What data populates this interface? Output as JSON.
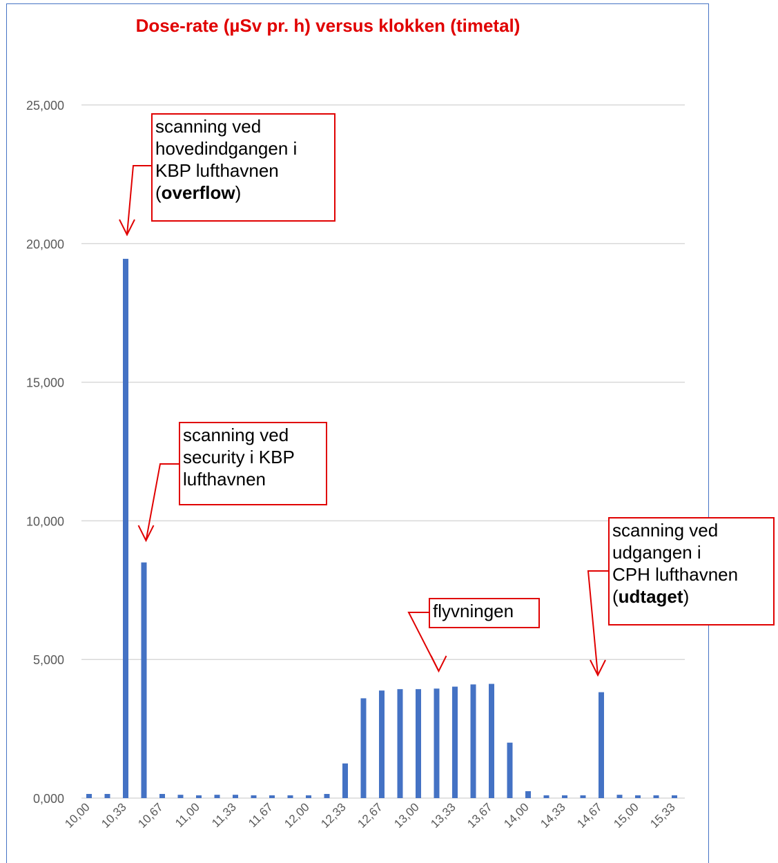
{
  "colors": {
    "bar": "#4472c4",
    "title": "#e00000",
    "annotation": "#e00000",
    "grid": "#d9d9d9",
    "axis_text": "#595959",
    "frame": "#4472c4"
  },
  "chart_data": {
    "type": "bar",
    "title": "Dose-rate (µSv pr. h) versus klokken (timetal)",
    "xlabel": "",
    "ylabel": "",
    "ylim": [
      0,
      25
    ],
    "y_ticks": [
      "0,000",
      "5,000",
      "10,000",
      "15,000",
      "20,000",
      "25,000"
    ],
    "x_tick_labels": [
      "10,00",
      "10,33",
      "10,67",
      "11,00",
      "11,33",
      "11,67",
      "12,00",
      "12,33",
      "12,67",
      "13,00",
      "13,33",
      "13,67",
      "14,00",
      "14,33",
      "14,67",
      "15,00",
      "15,33"
    ],
    "x": [
      10.0,
      10.17,
      10.33,
      10.5,
      10.67,
      10.83,
      11.0,
      11.17,
      11.33,
      11.5,
      11.67,
      11.83,
      12.0,
      12.17,
      12.33,
      12.5,
      12.67,
      12.83,
      13.0,
      13.17,
      13.33,
      13.5,
      13.67,
      13.83,
      14.0,
      14.17,
      14.33,
      14.5,
      14.67,
      14.83,
      15.0,
      15.17,
      15.33
    ],
    "values": [
      0.15,
      0.15,
      19.45,
      8.5,
      0.15,
      0.12,
      0.1,
      0.12,
      0.12,
      0.1,
      0.1,
      0.1,
      0.1,
      0.15,
      1.25,
      3.6,
      3.88,
      3.93,
      3.93,
      3.95,
      4.02,
      4.1,
      4.12,
      2.0,
      0.25,
      0.1,
      0.1,
      0.1,
      3.82,
      0.12,
      0.1,
      0.1,
      0.1
    ],
    "grid": true,
    "legend": "none",
    "annotations": [
      {
        "id": "overflow",
        "lines": [
          "scanning ved",
          "hovedindgangen i",
          "KBP lufthavnen"
        ],
        "last_prefix": "(",
        "last_bold": "overflow",
        "last_suffix": ")",
        "target_index": 2
      },
      {
        "id": "security",
        "lines": [
          "scanning ved",
          "security i KBP",
          "lufthavnen"
        ],
        "target_index": 3
      },
      {
        "id": "flight",
        "lines": [
          "flyvningen"
        ],
        "target_index": 19
      },
      {
        "id": "exit",
        "lines": [
          "scanning ved",
          "udgangen i",
          "CPH lufthavnen"
        ],
        "last_prefix": "(",
        "last_bold": "udtaget",
        "last_suffix": ")",
        "target_index": 28
      }
    ]
  }
}
